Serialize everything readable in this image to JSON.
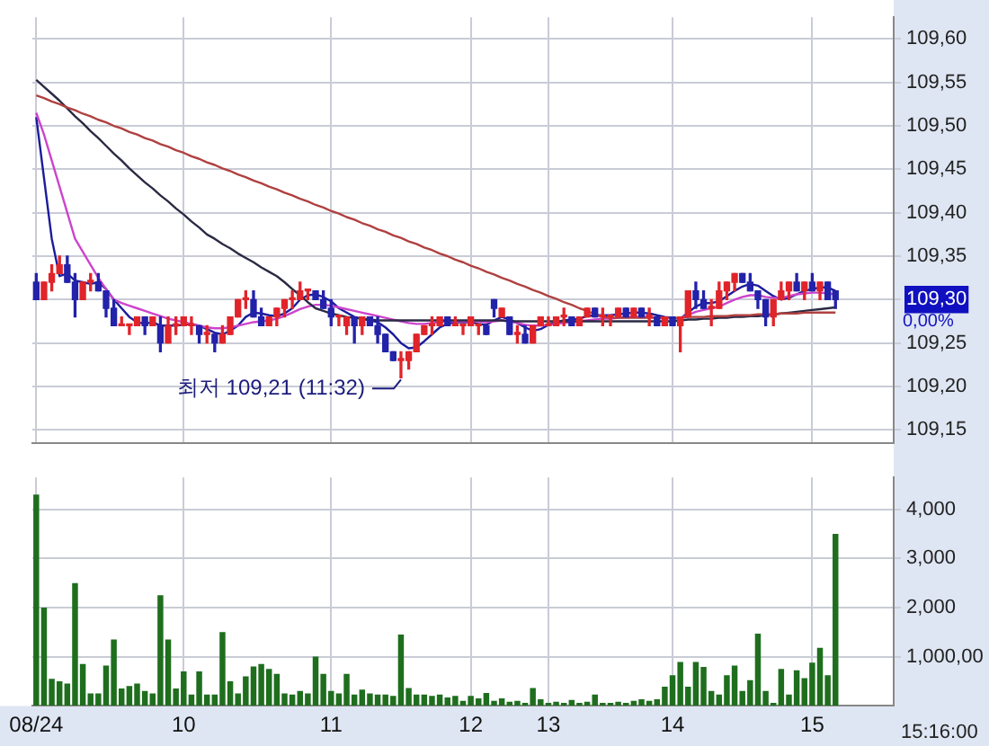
{
  "chart_data": [
    {
      "type": "candlestick",
      "categories": [
        null,
        null,
        null,
        null,
        null,
        null,
        null,
        null,
        null,
        null,
        null,
        null,
        null,
        null,
        null,
        null,
        null,
        null,
        null,
        null,
        null,
        null,
        null,
        null,
        null,
        null,
        null,
        null,
        null,
        null,
        null,
        null,
        null,
        null,
        null,
        null,
        null,
        null,
        null,
        null,
        null,
        null,
        null,
        null,
        null,
        null,
        null,
        null,
        null,
        null,
        null,
        null,
        null,
        null,
        null,
        null,
        null,
        null,
        null,
        null,
        null,
        null,
        null,
        null,
        null,
        null,
        null,
        null,
        null,
        null,
        null,
        null,
        null,
        null,
        null,
        null,
        null,
        null,
        null,
        null,
        null,
        null,
        null,
        null,
        null,
        null,
        null,
        null,
        null,
        null,
        null,
        null,
        null,
        null,
        null,
        null,
        null,
        null,
        null,
        null,
        null,
        null,
        null,
        null,
        null,
        null,
        null,
        null,
        null,
        null,
        null
      ],
      "ohlc": [
        [
          109.32,
          109.33,
          109.3,
          109.3
        ],
        [
          109.3,
          109.32,
          109.3,
          109.32
        ],
        [
          109.32,
          109.34,
          109.31,
          109.33
        ],
        [
          109.33,
          109.35,
          109.33,
          109.34
        ],
        [
          109.34,
          109.35,
          109.32,
          109.32
        ],
        [
          109.32,
          109.33,
          109.28,
          109.3
        ],
        [
          109.3,
          109.32,
          109.3,
          109.32
        ],
        [
          109.32,
          109.33,
          109.31,
          109.32
        ],
        [
          109.32,
          109.33,
          109.31,
          109.31
        ],
        [
          109.31,
          109.31,
          109.28,
          109.29
        ],
        [
          109.29,
          109.3,
          109.27,
          109.27
        ],
        [
          109.27,
          109.28,
          109.27,
          109.27
        ],
        [
          109.27,
          109.27,
          109.26,
          109.27
        ],
        [
          109.27,
          109.28,
          109.27,
          109.28
        ],
        [
          109.28,
          109.28,
          109.26,
          109.27
        ],
        [
          109.27,
          109.28,
          109.27,
          109.28
        ],
        [
          109.27,
          109.28,
          109.24,
          109.25
        ],
        [
          109.25,
          109.28,
          109.25,
          109.27
        ],
        [
          109.27,
          109.28,
          109.26,
          109.27
        ],
        [
          109.27,
          109.28,
          109.27,
          109.28
        ],
        [
          109.27,
          109.28,
          109.26,
          109.27
        ],
        [
          109.27,
          109.27,
          109.25,
          109.26
        ],
        [
          109.26,
          109.27,
          109.25,
          109.26
        ],
        [
          109.26,
          109.26,
          109.24,
          109.25
        ],
        [
          109.25,
          109.27,
          109.25,
          109.26
        ],
        [
          109.26,
          109.28,
          109.26,
          109.28
        ],
        [
          109.28,
          109.3,
          109.28,
          109.3
        ],
        [
          109.3,
          109.31,
          109.29,
          109.3
        ],
        [
          109.3,
          109.31,
          109.28,
          109.28
        ],
        [
          109.28,
          109.29,
          109.27,
          109.27
        ],
        [
          109.27,
          109.28,
          109.27,
          109.28
        ],
        [
          109.28,
          109.29,
          109.27,
          109.29
        ],
        [
          109.29,
          109.3,
          109.28,
          109.3
        ],
        [
          109.3,
          109.31,
          109.29,
          109.3
        ],
        [
          109.3,
          109.32,
          109.3,
          109.31
        ],
        [
          109.31,
          109.31,
          109.3,
          109.31
        ],
        [
          109.31,
          109.31,
          109.3,
          109.3
        ],
        [
          109.3,
          109.31,
          109.29,
          109.29
        ],
        [
          109.29,
          109.3,
          109.27,
          109.28
        ],
        [
          109.28,
          109.28,
          109.27,
          109.28
        ],
        [
          109.27,
          109.28,
          109.26,
          109.28
        ],
        [
          109.28,
          109.28,
          109.25,
          109.27
        ],
        [
          109.27,
          109.28,
          109.26,
          109.28
        ],
        [
          109.28,
          109.28,
          109.27,
          109.27
        ],
        [
          109.27,
          109.28,
          109.25,
          109.26
        ],
        [
          109.26,
          109.26,
          109.24,
          109.24
        ],
        [
          109.24,
          109.24,
          109.23,
          109.23
        ],
        [
          109.23,
          109.24,
          109.21,
          109.23
        ],
        [
          109.23,
          109.24,
          109.22,
          109.24
        ],
        [
          109.24,
          109.26,
          109.24,
          109.26
        ],
        [
          109.26,
          109.27,
          109.26,
          109.27
        ],
        [
          109.27,
          109.28,
          109.26,
          109.27
        ],
        [
          109.27,
          109.28,
          109.27,
          109.28
        ],
        [
          109.28,
          109.28,
          109.27,
          109.27
        ],
        [
          109.27,
          109.28,
          109.27,
          109.27
        ],
        [
          109.27,
          109.27,
          109.26,
          109.27
        ],
        [
          109.27,
          109.28,
          109.27,
          109.28
        ],
        [
          109.27,
          109.27,
          109.26,
          109.27
        ],
        [
          109.27,
          109.27,
          109.26,
          109.26
        ],
        [
          109.3,
          109.3,
          109.28,
          109.29
        ],
        [
          109.28,
          109.29,
          109.28,
          109.29
        ],
        [
          109.28,
          109.28,
          109.26,
          109.26
        ],
        [
          109.26,
          109.27,
          109.25,
          109.26
        ],
        [
          109.26,
          109.27,
          109.25,
          109.25
        ],
        [
          109.25,
          109.27,
          109.25,
          109.27
        ],
        [
          109.27,
          109.28,
          109.27,
          109.28
        ],
        [
          109.27,
          109.28,
          109.27,
          109.27
        ],
        [
          109.27,
          109.28,
          109.27,
          109.28
        ],
        [
          109.28,
          109.29,
          109.27,
          109.28
        ],
        [
          109.28,
          109.28,
          109.27,
          109.27
        ],
        [
          109.27,
          109.28,
          109.27,
          109.28
        ],
        [
          109.28,
          109.29,
          109.28,
          109.29
        ],
        [
          109.29,
          109.29,
          109.28,
          109.28
        ],
        [
          109.28,
          109.29,
          109.27,
          109.28
        ],
        [
          109.28,
          109.28,
          109.27,
          109.28
        ],
        [
          109.28,
          109.29,
          109.28,
          109.29
        ],
        [
          109.29,
          109.29,
          109.28,
          109.28
        ],
        [
          109.28,
          109.29,
          109.28,
          109.29
        ],
        [
          109.29,
          109.29,
          109.28,
          109.28
        ],
        [
          109.28,
          109.29,
          109.27,
          109.28
        ],
        [
          109.28,
          109.28,
          109.27,
          109.27
        ],
        [
          109.27,
          109.28,
          109.27,
          109.28
        ],
        [
          109.28,
          109.28,
          109.27,
          109.27
        ],
        [
          109.27,
          109.28,
          109.24,
          109.28
        ],
        [
          109.28,
          109.31,
          109.28,
          109.31
        ],
        [
          109.31,
          109.32,
          109.29,
          109.3
        ],
        [
          109.3,
          109.31,
          109.29,
          109.29
        ],
        [
          109.29,
          109.3,
          109.27,
          109.29
        ],
        [
          109.29,
          109.32,
          109.29,
          109.31
        ],
        [
          109.31,
          109.32,
          109.3,
          109.32
        ],
        [
          109.32,
          109.33,
          109.31,
          109.33
        ],
        [
          109.33,
          109.33,
          109.32,
          109.32
        ],
        [
          109.32,
          109.33,
          109.31,
          109.31
        ],
        [
          109.31,
          109.31,
          109.29,
          109.3
        ],
        [
          109.3,
          109.3,
          109.27,
          109.28
        ],
        [
          109.28,
          109.3,
          109.27,
          109.3
        ],
        [
          109.3,
          109.32,
          109.3,
          109.31
        ],
        [
          109.31,
          109.32,
          109.3,
          109.32
        ],
        [
          109.32,
          109.33,
          109.31,
          109.31
        ],
        [
          109.31,
          109.32,
          109.3,
          109.32
        ],
        [
          109.32,
          109.33,
          109.31,
          109.31
        ],
        [
          109.31,
          109.32,
          109.3,
          109.32
        ],
        [
          109.32,
          109.32,
          109.3,
          109.3
        ],
        [
          109.31,
          109.31,
          109.29,
          109.3
        ],
        null,
        null,
        null,
        null,
        null,
        null,
        null
      ],
      "colors": [
        "#2222aa",
        "#e0242a",
        "#e0242a",
        "#e0242a",
        "#2222aa",
        "#2222aa",
        "#e0242a",
        "#e0242a",
        "#2222aa",
        "#2222aa",
        "#2222aa",
        "#e0242a",
        "#e0242a",
        "#e0242a",
        "#2222aa",
        "#e0242a",
        "#2222aa",
        "#e0242a",
        "#e0242a",
        "#e0242a",
        "#e0242a",
        "#2222aa",
        "#e0242a",
        "#2222aa",
        "#e0242a",
        "#e0242a",
        "#e0242a",
        "#e0242a",
        "#2222aa",
        "#2222aa",
        "#e0242a",
        "#e0242a",
        "#e0242a",
        "#e0242a",
        "#e0242a",
        "#e0242a",
        "#2222aa",
        "#2222aa",
        "#2222aa",
        "#e0242a",
        "#e0242a",
        "#2222aa",
        "#e0242a",
        "#2222aa",
        "#2222aa",
        "#2222aa",
        "#2222aa",
        "#e0242a",
        "#e0242a",
        "#e0242a",
        "#e0242a",
        "#e0242a",
        "#e0242a",
        "#2222aa",
        "#e0242a",
        "#e0242a",
        "#e0242a",
        "#e0242a",
        "#2222aa",
        "#2222aa",
        "#e0242a",
        "#2222aa",
        "#e0242a",
        "#2222aa",
        "#e0242a",
        "#e0242a",
        "#e0242a",
        "#e0242a",
        "#e0242a",
        "#2222aa",
        "#e0242a",
        "#e0242a",
        "#2222aa",
        "#e0242a",
        "#e0242a",
        "#e0242a",
        "#2222aa",
        "#e0242a",
        "#2222aa",
        "#e0242a",
        "#2222aa",
        "#e0242a",
        "#2222aa",
        "#e0242a",
        "#e0242a",
        "#2222aa",
        "#2222aa",
        "#e0242a",
        "#e0242a",
        "#e0242a",
        "#e0242a",
        "#2222aa",
        "#2222aa",
        "#2222aa",
        "#2222aa",
        "#e0242a",
        "#e0242a",
        "#e0242a",
        "#2222aa",
        "#e0242a",
        "#2222aa",
        "#e0242a",
        "#2222aa",
        "#2222aa",
        null,
        null,
        null,
        null,
        null,
        null,
        null
      ],
      "series": [
        {
          "type": "line",
          "color": "#b04040",
          "values": [
            109.535,
            109.532,
            109.528,
            109.525,
            109.521,
            109.518,
            109.514,
            109.511,
            109.507,
            109.504,
            109.5,
            109.497,
            109.493,
            109.49,
            109.486,
            109.483,
            109.479,
            109.476,
            109.472,
            109.469,
            109.465,
            109.462,
            109.458,
            109.455,
            109.451,
            109.448,
            109.444,
            109.441,
            109.437,
            109.434,
            109.43,
            109.427,
            109.423,
            109.42,
            109.416,
            109.413,
            109.409,
            109.406,
            109.402,
            109.399,
            109.395,
            109.392,
            109.388,
            109.385,
            109.381,
            109.378,
            109.374,
            109.371,
            109.367,
            109.364,
            109.36,
            109.357,
            109.353,
            109.35,
            109.346,
            109.343,
            109.339,
            109.336,
            109.332,
            109.329,
            109.325,
            109.322,
            109.318,
            109.315,
            109.311,
            109.308,
            109.304,
            109.301,
            109.297,
            109.294,
            109.29,
            109.287,
            109.283,
            109.28,
            109.279,
            109.279,
            109.279,
            109.279,
            109.279,
            109.279,
            109.279,
            109.279,
            109.279,
            109.279,
            109.28,
            109.28,
            109.28,
            109.281,
            109.281,
            109.281,
            109.282,
            109.282,
            109.282,
            109.283,
            109.283,
            109.283,
            109.284,
            109.284,
            109.284,
            109.285,
            109.285,
            109.285,
            109.285,
            109.285,
            null,
            null,
            null,
            null,
            null,
            null,
            null
          ]
        },
        {
          "type": "line",
          "color": "#2a2a44",
          "values": [
            109.553,
            109.545,
            109.537,
            109.529,
            109.52,
            109.511,
            109.503,
            109.494,
            109.486,
            109.477,
            109.468,
            109.46,
            109.451,
            109.443,
            109.435,
            109.428,
            109.42,
            109.413,
            109.405,
            109.398,
            109.39,
            109.383,
            109.375,
            109.37,
            109.364,
            109.359,
            109.353,
            109.348,
            109.343,
            109.337,
            109.332,
            109.327,
            109.32,
            109.312,
            109.305,
            109.297,
            109.29,
            109.287,
            109.284,
            109.282,
            109.28,
            109.279,
            109.278,
            109.277,
            109.276,
            109.276,
            109.276,
            109.276,
            109.276,
            109.276,
            109.276,
            109.276,
            109.276,
            109.276,
            109.276,
            109.276,
            109.276,
            109.276,
            109.276,
            109.276,
            109.276,
            109.275,
            109.275,
            109.275,
            109.275,
            109.275,
            109.275,
            109.275,
            109.275,
            109.275,
            109.275,
            109.275,
            109.275,
            109.275,
            109.275,
            109.275,
            109.275,
            109.275,
            109.275,
            109.275,
            109.275,
            109.275,
            109.275,
            109.276,
            109.277,
            109.277,
            109.278,
            109.278,
            109.279,
            109.279,
            109.28,
            109.28,
            109.281,
            109.281,
            109.282,
            109.283,
            109.284,
            109.285,
            109.286,
            109.287,
            109.288,
            109.289,
            109.29,
            109.291,
            null,
            null,
            null,
            null,
            null,
            null,
            null
          ]
        },
        {
          "type": "line",
          "color": "#cc44cc",
          "values": [
            109.515,
            109.49,
            109.46,
            109.43,
            109.4,
            109.37,
            109.355,
            109.34,
            109.325,
            109.312,
            109.3,
            109.296,
            109.293,
            109.29,
            109.287,
            109.284,
            109.281,
            109.278,
            109.276,
            109.274,
            109.272,
            109.27,
            109.268,
            109.267,
            109.267,
            109.268,
            109.27,
            109.272,
            109.274,
            109.275,
            109.276,
            109.278,
            109.281,
            109.285,
            109.289,
            109.292,
            109.294,
            109.294,
            109.293,
            109.291,
            109.289,
            109.287,
            109.285,
            109.283,
            109.281,
            109.279,
            109.277,
            109.275,
            109.273,
            109.272,
            109.272,
            109.273,
            109.274,
            109.275,
            109.275,
            109.275,
            109.275,
            109.275,
            109.274,
            109.275,
            109.276,
            109.275,
            109.273,
            109.271,
            109.27,
            109.27,
            109.271,
            109.272,
            109.273,
            109.274,
            109.275,
            109.276,
            109.277,
            109.278,
            109.278,
            109.279,
            109.28,
            109.28,
            109.28,
            109.28,
            109.279,
            109.279,
            109.278,
            109.279,
            109.282,
            109.286,
            109.288,
            109.29,
            109.292,
            109.296,
            109.3,
            109.303,
            109.305,
            109.305,
            109.303,
            109.302,
            109.302,
            109.304,
            109.306,
            109.307,
            109.308,
            109.308,
            109.307,
            109.306,
            null,
            null,
            null,
            null,
            null,
            null,
            null
          ]
        },
        {
          "type": "line",
          "color": "#1c1c9c",
          "values": [
            109.51,
            109.44,
            109.37,
            109.327,
            109.33,
            109.322,
            109.32,
            109.318,
            109.32,
            109.312,
            109.3,
            109.29,
            109.28,
            109.274,
            109.272,
            109.274,
            109.27,
            109.27,
            109.27,
            109.271,
            109.272,
            109.27,
            109.266,
            109.262,
            109.26,
            109.264,
            109.27,
            109.28,
            109.285,
            109.284,
            109.282,
            109.281,
            109.284,
            109.29,
            109.3,
            109.305,
            109.306,
            109.303,
            109.298,
            109.29,
            109.285,
            109.28,
            109.278,
            109.276,
            109.274,
            109.268,
            109.26,
            109.25,
            109.244,
            109.245,
            109.252,
            109.26,
            109.268,
            109.272,
            109.274,
            109.274,
            109.274,
            109.272,
            109.271,
            109.276,
            109.28,
            109.277,
            109.273,
            109.268,
            109.264,
            109.266,
            109.271,
            109.274,
            109.276,
            109.277,
            109.278,
            109.281,
            109.282,
            109.282,
            109.282,
            109.283,
            109.284,
            109.285,
            109.285,
            109.284,
            109.282,
            109.28,
            109.279,
            109.278,
            109.285,
            109.292,
            109.296,
            109.296,
            109.298,
            109.304,
            109.31,
            109.315,
            109.318,
            109.316,
            109.31,
            109.304,
            109.3,
            109.302,
            109.306,
            109.31,
            109.312,
            109.314,
            109.314,
            109.31,
            null,
            null,
            null,
            null,
            null,
            null,
            null
          ]
        }
      ],
      "ylim": [
        109.135,
        109.625
      ],
      "yticks": [
        {
          "value": 109.15,
          "label": "109,15"
        },
        {
          "value": 109.2,
          "label": "109,20"
        },
        {
          "value": 109.25,
          "label": "109,25"
        },
        {
          "value": 109.3,
          "label": "109,30"
        },
        {
          "value": 109.35,
          "label": "109,35"
        },
        {
          "value": 109.4,
          "label": "109,40"
        },
        {
          "value": 109.45,
          "label": "109,45"
        },
        {
          "value": 109.5,
          "label": "109,50"
        },
        {
          "value": 109.55,
          "label": "109,55"
        },
        {
          "value": 109.6,
          "label": "109,60"
        }
      ],
      "grid": true,
      "tick_labels": "y",
      "annotations": [
        "최저 109,21 (11:32)",
        "0,00%"
      ]
    },
    {
      "type": "bar",
      "categories": [
        "08/24",
        null,
        null,
        null,
        null,
        null,
        null,
        null,
        null,
        null,
        null,
        null,
        null,
        null,
        null,
        null,
        null,
        null,
        null,
        "10",
        null,
        null,
        null,
        null,
        null,
        null,
        null,
        null,
        null,
        null,
        null,
        null,
        null,
        null,
        null,
        null,
        null,
        null,
        "11",
        null,
        null,
        null,
        null,
        null,
        null,
        null,
        null,
        null,
        null,
        null,
        null,
        null,
        null,
        null,
        null,
        null,
        "12",
        null,
        null,
        null,
        null,
        null,
        null,
        null,
        null,
        null,
        "13",
        null,
        null,
        null,
        null,
        null,
        null,
        null,
        null,
        null,
        null,
        null,
        null,
        null,
        null,
        null,
        "14",
        null,
        null,
        null,
        null,
        null,
        null,
        null,
        null,
        null,
        null,
        null,
        null,
        null,
        null,
        null,
        null,
        null,
        "15",
        null,
        null,
        null,
        null,
        null,
        null,
        null,
        null,
        null,
        null
      ],
      "values": [
        4300,
        2000,
        550,
        500,
        450,
        2500,
        850,
        250,
        250,
        820,
        1350,
        350,
        400,
        450,
        300,
        250,
        2250,
        1350,
        350,
        700,
        230,
        700,
        230,
        230,
        1500,
        500,
        250,
        600,
        800,
        850,
        750,
        650,
        250,
        230,
        300,
        250,
        1000,
        650,
        300,
        250,
        650,
        230,
        330,
        250,
        230,
        230,
        200,
        1450,
        360,
        230,
        230,
        200,
        230,
        170,
        200,
        100,
        200,
        150,
        260,
        100,
        150,
        80,
        100,
        60,
        360,
        130,
        60,
        80,
        60,
        120,
        60,
        80,
        230,
        60,
        60,
        80,
        60,
        100,
        130,
        100,
        130,
        390,
        620,
        890,
        390,
        890,
        790,
        300,
        230,
        620,
        820,
        300,
        520,
        1470,
        300,
        60,
        750,
        230,
        720,
        560,
        880,
        1180,
        620,
        3500,
        null,
        null,
        null,
        null,
        null,
        null,
        null
      ],
      "color": "#1e6e1e",
      "ylim": [
        0,
        4650
      ],
      "yticks": [
        {
          "value": 1000,
          "label": "1,000,00"
        },
        {
          "value": 2000,
          "label": "2,000"
        },
        {
          "value": 3000,
          "label": "3,000"
        },
        {
          "value": 4000,
          "label": "4,000"
        }
      ],
      "grid": true,
      "annotations": [
        "15:16:00"
      ]
    }
  ]
}
